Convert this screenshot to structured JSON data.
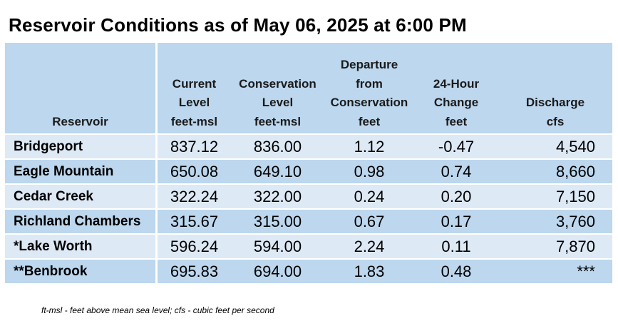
{
  "title": "Reservoir Conditions as of May 06, 2025 at 6:00 PM",
  "columns": [
    {
      "lines": [
        "",
        "",
        "",
        "",
        "Reservoir"
      ]
    },
    {
      "lines": [
        "",
        "",
        "Current",
        "Level",
        "feet-msl"
      ]
    },
    {
      "lines": [
        "",
        "",
        "Conservation",
        "Level",
        "feet-msl"
      ]
    },
    {
      "lines": [
        "",
        "Departure",
        "from",
        "Conservation",
        "feet"
      ]
    },
    {
      "lines": [
        "",
        "",
        "24-Hour",
        "Change",
        "feet"
      ]
    },
    {
      "lines": [
        "",
        "",
        "",
        "Discharge",
        "cfs"
      ]
    }
  ],
  "rows": [
    {
      "reservoir": "Bridgeport",
      "current_level": "837.12",
      "conservation_level": "836.00",
      "departure": "1.12",
      "change_24h": "-0.47",
      "discharge": "4,540"
    },
    {
      "reservoir": "Eagle Mountain",
      "current_level": "650.08",
      "conservation_level": "649.10",
      "departure": "0.98",
      "change_24h": "0.74",
      "discharge": "8,660"
    },
    {
      "reservoir": "Cedar Creek",
      "current_level": "322.24",
      "conservation_level": "322.00",
      "departure": "0.24",
      "change_24h": "0.20",
      "discharge": "7,150"
    },
    {
      "reservoir": "Richland Chambers",
      "current_level": "315.67",
      "conservation_level": "315.00",
      "departure": "0.67",
      "change_24h": "0.17",
      "discharge": "3,760"
    },
    {
      "reservoir": "*Lake Worth",
      "current_level": "596.24",
      "conservation_level": "594.00",
      "departure": "2.24",
      "change_24h": "0.11",
      "discharge": "7,870"
    },
    {
      "reservoir": "**Benbrook",
      "current_level": "695.83",
      "conservation_level": "694.00",
      "departure": "1.83",
      "change_24h": "0.48",
      "discharge": "***"
    }
  ],
  "footnote": "ft-msl - feet above mean sea level; cfs - cubic feet per second",
  "colors": {
    "header_bg": "#bcd7ee",
    "row_light": "#dde9f5",
    "row_dark": "#bcd7ee"
  }
}
